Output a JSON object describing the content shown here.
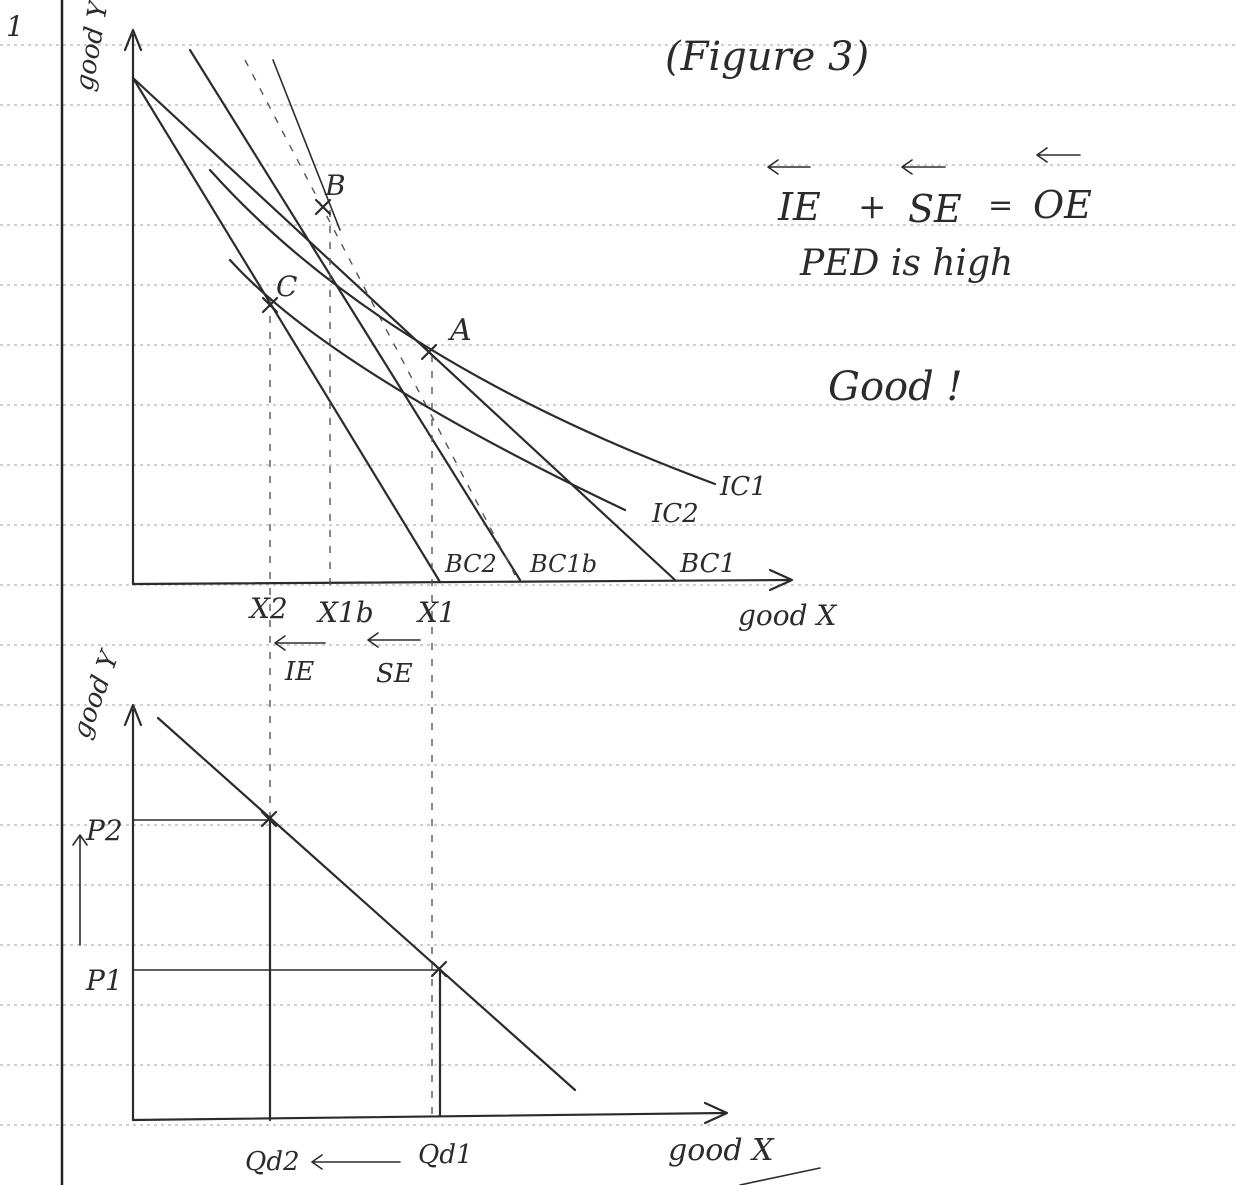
{
  "page": {
    "margin_number": "1",
    "figure_title": "(Figure 3)",
    "effects": {
      "ie_label": "IE",
      "plus_label": "+",
      "se_label": "SE",
      "equals_label": "=",
      "oe_label": "OE"
    },
    "ped_note": "PED is high",
    "teacher_comment": "Good !"
  },
  "top_graph": {
    "y_axis_label": "good Y",
    "x_axis_label": "good X",
    "points": {
      "a": "A",
      "b": "B",
      "c": "C"
    },
    "curves": {
      "ic1": "IC1",
      "ic2": "IC2",
      "bc1": "BC1",
      "bc1b": "BC1b",
      "bc2": "BC2"
    },
    "x_ticks": {
      "x2": "X2",
      "x1b": "X1b",
      "x1": "X1"
    },
    "under_axis": {
      "ie": "IE",
      "se": "SE"
    }
  },
  "bottom_graph": {
    "y_axis_label": "good Y",
    "x_axis_label": "good X",
    "price_labels": {
      "p2": "P2",
      "p1": "P1"
    },
    "quantity_labels": {
      "qd2": "Qd2",
      "qd1": "Qd1"
    }
  }
}
